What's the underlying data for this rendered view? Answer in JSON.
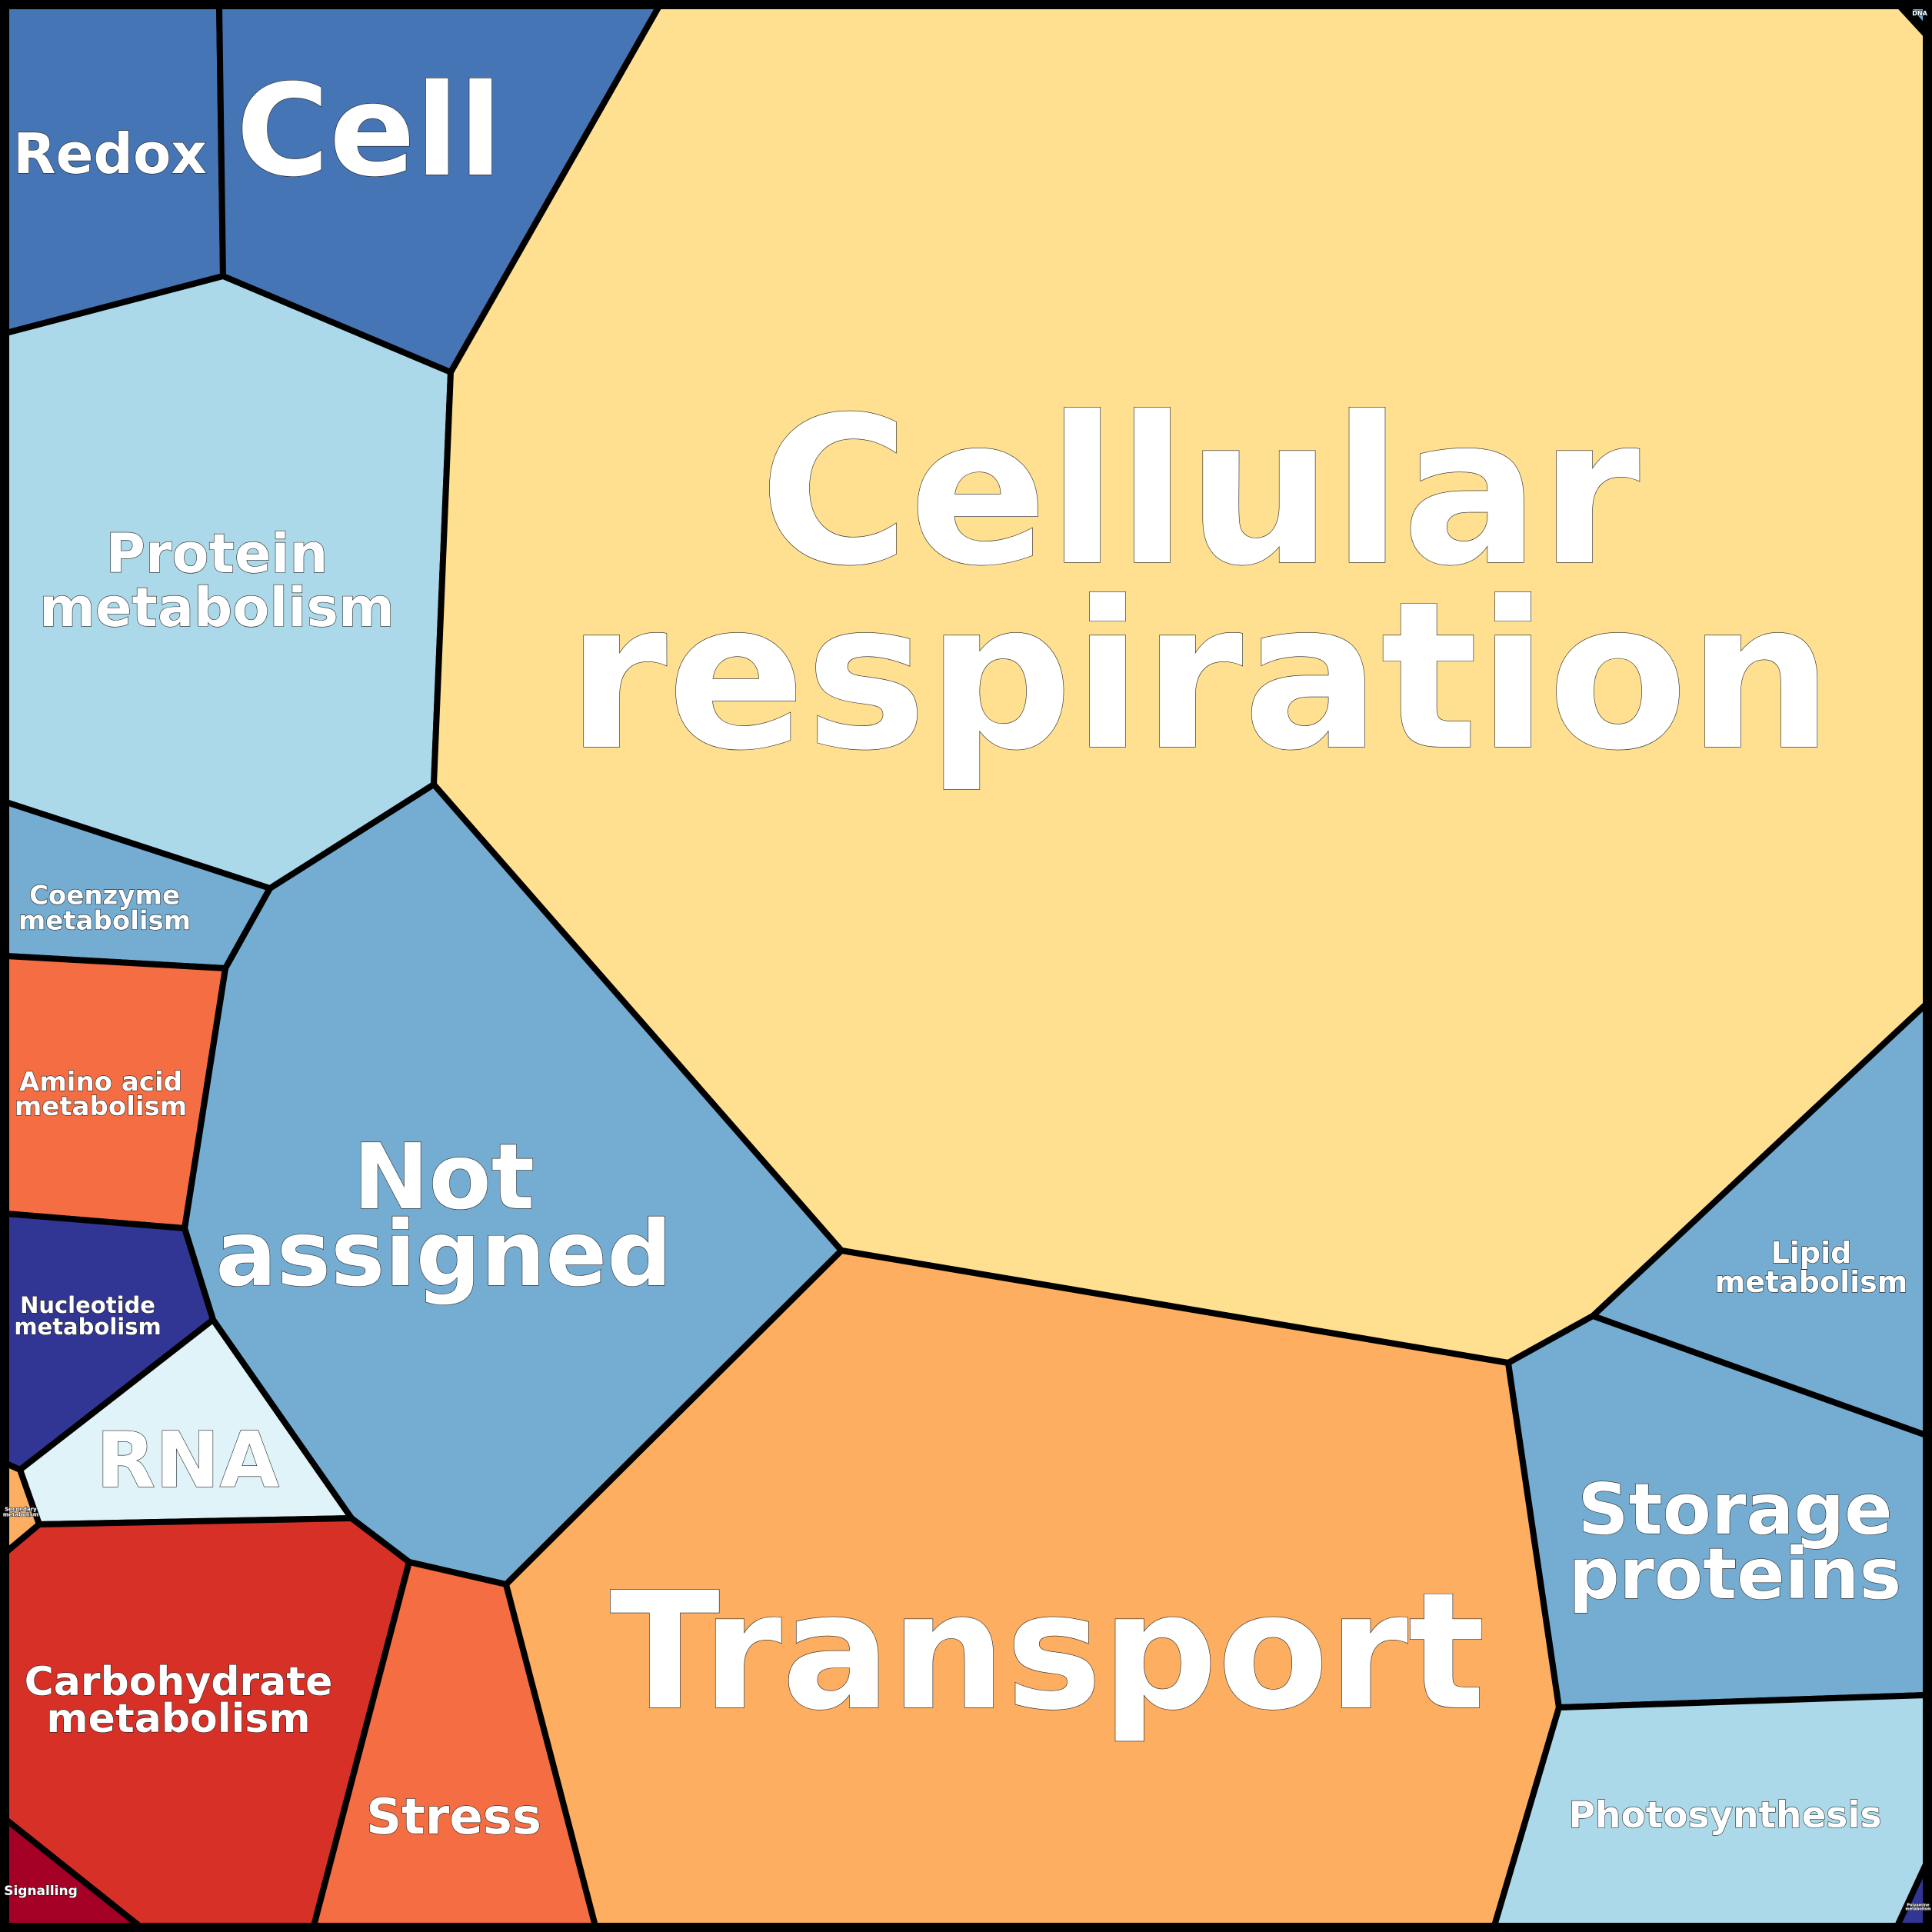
{
  "cells": [
    {
      "id": "redox",
      "label": [
        "Redox"
      ],
      "color": "#4575b4"
    },
    {
      "id": "cell",
      "label": [
        "Cell"
      ],
      "color": "#4575b4"
    },
    {
      "id": "protein-metabolism",
      "label": [
        "Protein",
        "metabolism"
      ],
      "color": "#abd9e9"
    },
    {
      "id": "cellular-respiration",
      "label": [
        "Cellular",
        "respiration"
      ],
      "color": "#fee090"
    },
    {
      "id": "coenzyme-metabolism",
      "label": [
        "Coenzyme",
        "metabolism"
      ],
      "color": "#74add1"
    },
    {
      "id": "not-assigned",
      "label": [
        "Not",
        "assigned"
      ],
      "color": "#74add1"
    },
    {
      "id": "amino-acid-metabolism",
      "label": [
        "Amino acid",
        "metabolism"
      ],
      "color": "#f46d43"
    },
    {
      "id": "nucleotide-metabolism",
      "label": [
        "Nucleotide",
        "metabolism"
      ],
      "color": "#313695"
    },
    {
      "id": "rna",
      "label": [
        "RNA"
      ],
      "color": "#e0f3f8"
    },
    {
      "id": "secondary-metabolism",
      "label": [
        "Secondary",
        "metabolism"
      ],
      "color": "#fdae61"
    },
    {
      "id": "carbohydrate-metabolism",
      "label": [
        "Carbohydrate",
        "metabolism"
      ],
      "color": "#d73027"
    },
    {
      "id": "signalling",
      "label": [
        "Signalling"
      ],
      "color": "#a50026"
    },
    {
      "id": "stress",
      "label": [
        "Stress"
      ],
      "color": "#f46d43"
    },
    {
      "id": "transport",
      "label": [
        "Transport"
      ],
      "color": "#fdae61"
    },
    {
      "id": "lipid-metabolism",
      "label": [
        "Lipid",
        "metabolism"
      ],
      "color": "#74add1"
    },
    {
      "id": "storage-proteins",
      "label": [
        "Storage",
        "proteins"
      ],
      "color": "#74add1"
    },
    {
      "id": "photosynthesis",
      "label": [
        "Photosynthesis"
      ],
      "color": "#abd9e9"
    },
    {
      "id": "polyamine-metabolism",
      "label": [
        "Polyamine",
        "metabolism"
      ],
      "color": "#313695"
    },
    {
      "id": "dna",
      "label": [
        "DNA"
      ],
      "color": "#74add1"
    }
  ]
}
